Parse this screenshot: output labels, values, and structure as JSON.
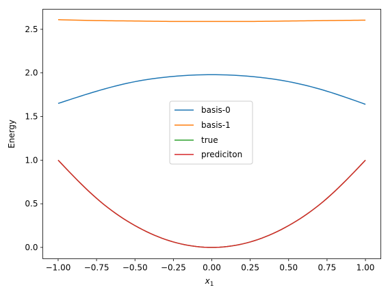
{
  "chart_data": {
    "type": "line",
    "title": "",
    "xlabel": "x",
    "xlabel_sub": "1",
    "ylabel": "Energy",
    "xlim": [
      -1.1,
      1.1
    ],
    "ylim": [
      -0.13,
      2.73
    ],
    "grid": false,
    "legend_placement": "center",
    "x_ticks": [
      -1.0,
      -0.75,
      -0.5,
      -0.25,
      0.0,
      0.25,
      0.5,
      0.75,
      1.0
    ],
    "x_tick_labels": [
      "−1.00",
      "−0.75",
      "−0.50",
      "−0.25",
      "0.00",
      "0.25",
      "0.50",
      "0.75",
      "1.00"
    ],
    "y_ticks": [
      0.0,
      0.5,
      1.0,
      1.5,
      2.0,
      2.5
    ],
    "y_tick_labels": [
      "0.0",
      "0.5",
      "1.0",
      "1.5",
      "2.0",
      "2.5"
    ],
    "series": [
      {
        "name": "basis-0",
        "color": "#1f77b4",
        "x": [
          -1.0,
          -0.75,
          -0.5,
          -0.25,
          0.0,
          0.25,
          0.5,
          0.75,
          1.0
        ],
        "y": [
          1.65,
          1.79,
          1.9,
          1.96,
          1.98,
          1.96,
          1.9,
          1.79,
          1.64
        ]
      },
      {
        "name": "basis-1",
        "color": "#ff7f0e",
        "x": [
          -1.0,
          -0.75,
          -0.5,
          -0.25,
          0.0,
          0.25,
          0.5,
          0.75,
          1.0
        ],
        "y": [
          2.61,
          2.6,
          2.595,
          2.59,
          2.59,
          2.59,
          2.595,
          2.6,
          2.605
        ]
      },
      {
        "name": "true",
        "color": "#2ca02c",
        "x": [
          -1.0,
          -0.75,
          -0.5,
          -0.25,
          0.0,
          0.25,
          0.5,
          0.75,
          1.0
        ],
        "y": [
          1.0,
          0.5625,
          0.25,
          0.0625,
          0.0,
          0.0625,
          0.25,
          0.5625,
          1.0
        ]
      },
      {
        "name": "prediciton",
        "color": "#d62728",
        "x": [
          -1.0,
          -0.75,
          -0.5,
          -0.25,
          0.0,
          0.25,
          0.5,
          0.75,
          1.0
        ],
        "y": [
          1.0,
          0.5625,
          0.25,
          0.0625,
          0.0,
          0.0625,
          0.25,
          0.5625,
          1.0
        ]
      }
    ]
  }
}
